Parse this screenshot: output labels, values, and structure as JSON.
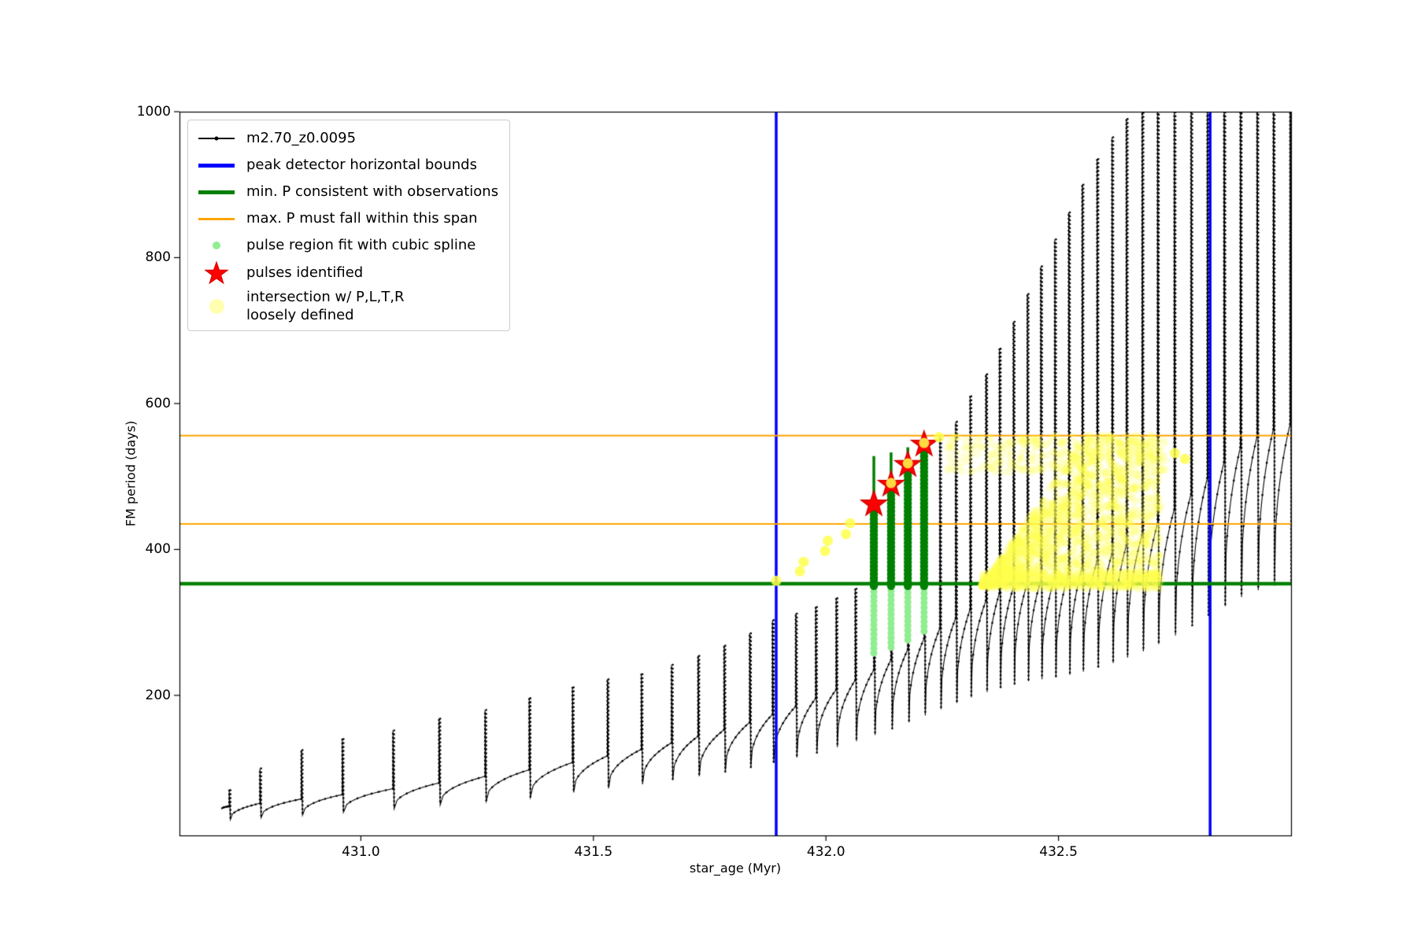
{
  "figure": {
    "background": "#ffffff"
  },
  "chart_data": {
    "type": "line",
    "title": "",
    "xlabel": "star_age (Myr)",
    "ylabel": "FM period (days)",
    "xlim": [
      430.61,
      433.0
    ],
    "ylim": [
      8,
      1000
    ],
    "x_ticks": [
      "431.0",
      "431.5",
      "432.0",
      "432.5"
    ],
    "x_tick_values": [
      431.0,
      431.5,
      432.0,
      432.5
    ],
    "y_ticks": [
      "200",
      "400",
      "600",
      "800",
      "1000"
    ],
    "y_tick_values": [
      200,
      400,
      600,
      800,
      1000
    ],
    "grid": false,
    "legend_position": "upper left",
    "series": {
      "track": {
        "name": "m2.70_z0.0095",
        "color": "#000000",
        "start": [
          430.7,
          44
        ],
        "pulses": [
          [
            430.717,
            48,
            70
          ],
          [
            430.783,
            52,
            100
          ],
          [
            430.872,
            58,
            125
          ],
          [
            430.96,
            64,
            140
          ],
          [
            431.069,
            72,
            152
          ],
          [
            431.168,
            80,
            168
          ],
          [
            431.267,
            89,
            180
          ],
          [
            431.362,
            98,
            196
          ],
          [
            431.455,
            108,
            211
          ],
          [
            431.53,
            117,
            222
          ],
          [
            431.603,
            126,
            229
          ],
          [
            431.668,
            135,
            242
          ],
          [
            431.725,
            144,
            254
          ],
          [
            431.781,
            153,
            268
          ],
          [
            431.836,
            163,
            285
          ],
          [
            431.885,
            174,
            303
          ],
          [
            431.935,
            185,
            312
          ],
          [
            431.978,
            196,
            321
          ],
          [
            432.022,
            208,
            333
          ],
          [
            432.063,
            221,
            346
          ],
          [
            432.103,
            235,
            462
          ],
          [
            432.14,
            249,
            489
          ],
          [
            432.176,
            263,
            516
          ],
          [
            432.211,
            278,
            544
          ],
          [
            432.245,
            292,
            556
          ],
          [
            432.279,
            306,
            575
          ],
          [
            432.31,
            318,
            610
          ],
          [
            432.344,
            330,
            640
          ],
          [
            432.373,
            340,
            675
          ],
          [
            432.403,
            348,
            712
          ],
          [
            432.433,
            354,
            750
          ],
          [
            432.462,
            358,
            788
          ],
          [
            432.492,
            362,
            825
          ],
          [
            432.522,
            368,
            862
          ],
          [
            432.551,
            375,
            900
          ],
          [
            432.583,
            384,
            935
          ],
          [
            432.615,
            394,
            965
          ],
          [
            432.646,
            406,
            990
          ],
          [
            432.68,
            420,
            1020
          ],
          [
            432.713,
            436,
            1050
          ],
          [
            432.749,
            455,
            1080
          ],
          [
            432.785,
            476,
            1110
          ],
          [
            432.82,
            498,
            1130
          ],
          [
            432.856,
            520,
            1150
          ],
          [
            432.891,
            540,
            1170
          ],
          [
            432.927,
            555,
            1190
          ],
          [
            432.962,
            565,
            1200
          ],
          [
            432.998,
            572,
            1210
          ]
        ]
      },
      "peak_bounds": {
        "name": "peak detector horizontal bounds",
        "color": "#0000ff",
        "x_values": [
          431.893,
          432.826
        ]
      },
      "min_p": {
        "name": "min. P consistent with observations",
        "color": "#008000",
        "y": 353
      },
      "max_p_span": {
        "name": "max. P must fall within this span",
        "color": "#ffa500",
        "y_values": [
          556,
          435
        ]
      },
      "spline_columns": {
        "name": "pulse region fit with cubic spline",
        "color_light": "#90ee90",
        "color_dark": "#008000",
        "dark_from": 350,
        "columns": [
          [
            432.103,
            258,
            462,
            528
          ],
          [
            432.14,
            266,
            489,
            533
          ],
          [
            432.176,
            276,
            516,
            540
          ],
          [
            432.211,
            288,
            544,
            558
          ]
        ]
      },
      "stars": {
        "name": "pulses identified",
        "color": "#ff0000",
        "edge_color": "#d40000",
        "points": [
          [
            432.103,
            462
          ],
          [
            432.14,
            489
          ],
          [
            432.176,
            516
          ],
          [
            432.211,
            544
          ]
        ]
      },
      "intersection": {
        "name": "intersection w/ P,L,T,R loosely defined",
        "color": "#ffff4d",
        "region": {
          "x0": 432.335,
          "x1": 432.72,
          "y_bottom": 350,
          "y_top_max": 557,
          "x_full": 432.56
        },
        "top_band": {
          "x0": 432.26,
          "x1": 432.73,
          "y0": 505,
          "y1": 557
        },
        "scatter": [
          [
            431.893,
            357
          ],
          [
            431.944,
            370
          ],
          [
            431.952,
            383
          ],
          [
            431.998,
            398
          ],
          [
            432.004,
            412
          ],
          [
            432.043,
            421
          ],
          [
            432.052,
            436
          ],
          [
            432.14,
            491
          ],
          [
            432.176,
            518
          ],
          [
            432.211,
            546
          ],
          [
            432.243,
            554
          ],
          [
            432.75,
            532
          ],
          [
            432.772,
            524
          ]
        ]
      }
    }
  },
  "legend": {
    "items": [
      {
        "label": "m2.70_z0.0095",
        "marker": "line-dot",
        "color": "#000000"
      },
      {
        "label": "peak detector horizontal bounds",
        "marker": "thick-line",
        "color": "#0000ff"
      },
      {
        "label": "min. P consistent with observations",
        "marker": "thick-line",
        "color": "#008000"
      },
      {
        "label": "max. P must fall within this span",
        "marker": "line",
        "color": "#ffa500"
      },
      {
        "label": "pulse region fit with cubic spline",
        "marker": "dot-small",
        "color": "#90ee90"
      },
      {
        "label": "pulses identified",
        "marker": "star",
        "color": "#ff0000"
      },
      {
        "label": "intersection w/ P,L,T,R\nloosely defined",
        "marker": "dot-large",
        "color": "#ffff4d"
      }
    ]
  }
}
